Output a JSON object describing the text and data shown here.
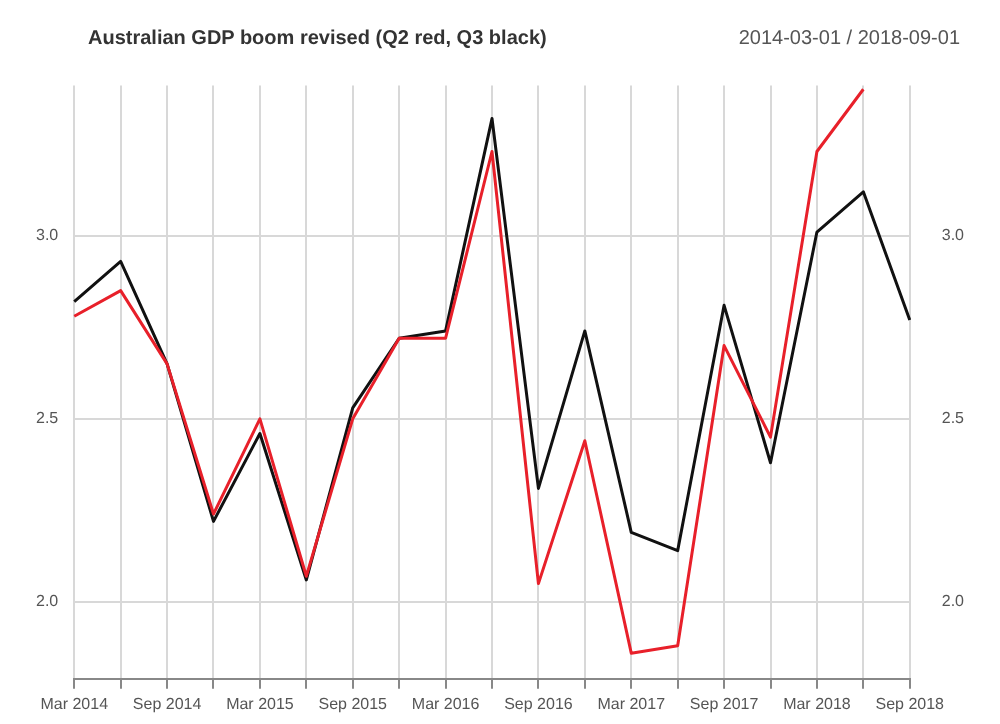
{
  "chart_data": {
    "type": "line",
    "title": "Australian GDP boom revised (Q2 red, Q3 black)",
    "subtitle": "2014-03-01 / 2018-09-01",
    "categories": [
      "Mar 2014",
      null,
      "Sep 2014",
      null,
      "Mar 2015",
      null,
      "Sep 2015",
      null,
      "Mar 2016",
      null,
      "Sep 2016",
      null,
      "Mar 2017",
      null,
      "Sep 2017",
      null,
      "Mar 2018",
      null,
      "Sep 2018"
    ],
    "series": [
      {
        "color": "#e8202a",
        "values": [
          2.78,
          2.85,
          2.65,
          2.24,
          2.5,
          2.07,
          2.5,
          2.72,
          2.72,
          3.23,
          2.05,
          2.44,
          1.86,
          1.88,
          2.7,
          2.45,
          3.23,
          3.4,
          null
        ]
      },
      {
        "color": "#111111",
        "values": [
          2.82,
          2.93,
          2.65,
          2.22,
          2.46,
          2.06,
          2.53,
          2.72,
          2.74,
          3.32,
          2.31,
          2.74,
          2.19,
          2.14,
          2.81,
          2.38,
          3.01,
          3.12,
          2.77
        ]
      }
    ],
    "ylim": [
      1.79,
      3.41
    ],
    "yticks": [
      {
        "value": 2,
        "label": "2.0"
      },
      {
        "value": 2.5,
        "label": "2.5"
      },
      {
        "value": 3,
        "label": "3.0"
      }
    ],
    "y2lim": [
      1.79,
      3.41
    ],
    "y2ticks": [
      {
        "value": 2,
        "label": "2.0"
      },
      {
        "value": 2.5,
        "label": "2.5"
      },
      {
        "value": 3,
        "label": "3.0"
      }
    ],
    "grid": true,
    "legend": false,
    "marker": "none",
    "line_style": "solid"
  }
}
